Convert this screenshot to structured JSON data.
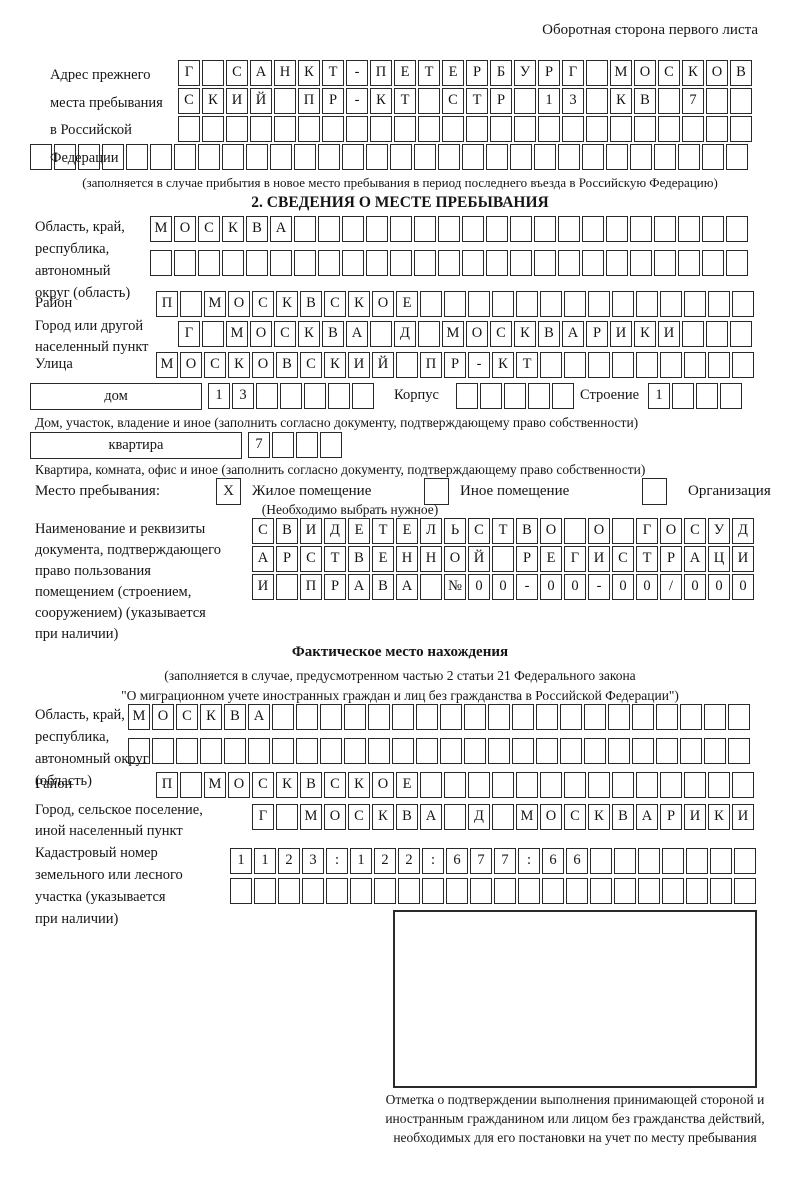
{
  "header": {
    "page_note": "Оборотная сторона первого листа"
  },
  "prev_address": {
    "label_lines": [
      "Адрес прежнего",
      "места пребывания",
      "в Российской",
      "Федерации"
    ],
    "rows": [
      {
        "chars": "Г САНКТ-ПЕТЕРБУРГ МОСКОВ",
        "len": 24
      },
      {
        "chars": "СКИЙ ПР-КТ СТР 13 КВ 7",
        "len": 24
      },
      {
        "chars": "",
        "len": 24
      }
    ],
    "full_row": {
      "chars": "",
      "len": 30
    },
    "caption": "(заполняется в случае прибытия в новое место пребывания в период последнего въезда в Российскую Федерацию)"
  },
  "section2": {
    "title": "2. СВЕДЕНИЯ О МЕСТЕ ПРЕБЫВАНИЯ",
    "region": {
      "label_lines": [
        "Область, край,",
        "республика,",
        "автономный",
        "округ (область)"
      ],
      "rows": [
        {
          "chars": "МОСКВА",
          "len": 25
        },
        {
          "chars": "",
          "len": 25
        }
      ]
    },
    "district": {
      "label": "Район",
      "row": {
        "chars": "П МОСКВСКОЕ",
        "len": 25
      }
    },
    "city": {
      "label_lines": [
        "Город или другой",
        "населенный пункт"
      ],
      "row": {
        "chars": "Г МОСКВА Д МОСКВАРИКИ",
        "len": 24
      }
    },
    "street": {
      "label": "Улица",
      "row": {
        "chars": "МОСКОВСКИЙ ПР-КТ",
        "len": 25
      }
    },
    "house": {
      "box_label": "дом",
      "cells": {
        "chars": "13",
        "len": 7
      },
      "korpus_label": "Корпус",
      "korpus_cells": {
        "chars": "",
        "len": 5
      },
      "stroenie_label": "Строение",
      "stroenie_cells": {
        "chars": "1",
        "len": 4
      },
      "caption": "Дом, участок, владение и иное (заполнить согласно документу, подтверждающему право собственности)"
    },
    "apartment": {
      "box_label": "квартира",
      "cells": {
        "chars": "7",
        "len": 4
      },
      "caption": "Квартира, комната, офис и иное (заполнить согласно документу, подтверждающему право собственности)"
    },
    "stay_type": {
      "label": "Место пребывания:",
      "options": [
        {
          "label": "Жилое помещение",
          "checked": "X"
        },
        {
          "label": "Иное помещение",
          "checked": ""
        },
        {
          "label": "Организация",
          "checked": ""
        }
      ],
      "note": "(Необходимо выбрать нужное)"
    },
    "document": {
      "label_lines": [
        "Наименование и реквизиты",
        "документа, подтверждающего",
        "право пользования",
        "помещением (строением,",
        "сооружением) (указывается",
        "при наличии)"
      ],
      "rows": [
        {
          "chars": "СВИДЕТЕЛЬСТВО О ГОСУД",
          "len": 21
        },
        {
          "chars": "АРСТВЕННОЙ РЕГИСТРАЦИ",
          "len": 21
        },
        {
          "chars": "И ПРАВА №00-00-00/000",
          "len": 21
        }
      ]
    }
  },
  "actual_location": {
    "title": "Фактическое место нахождения",
    "note_lines": [
      "(заполняется в случае, предусмотренном частью 2 статьи 21 Федерального закона",
      "\"О миграционном учете иностранных граждан и лиц без гражданства в Российской Федерации\")"
    ],
    "region": {
      "label_lines": [
        "Область, край,",
        "республика,",
        "автономный округ",
        "(область)"
      ],
      "rows": [
        {
          "chars": "МОСКВА",
          "len": 26
        },
        {
          "chars": "",
          "len": 26
        }
      ]
    },
    "district": {
      "label": "Район",
      "row": {
        "chars": "П МОСКВСКОЕ",
        "len": 25
      }
    },
    "city": {
      "label_lines": [
        "Город, сельское поселение,",
        "иной населенный пункт"
      ],
      "row": {
        "chars": "Г МОСКВА Д МОСКВАРИКИ",
        "len": 21
      }
    },
    "cadastral": {
      "label_lines": [
        "Кадастровый номер",
        "земельного или лесного",
        "участка (указывается",
        "при наличии)"
      ],
      "rows": [
        {
          "chars": "1123:122:677:66",
          "len": 22
        },
        {
          "chars": "",
          "len": 22
        }
      ]
    },
    "stamp_caption": "Отметка о подтверждении выполнения принимающей стороной и иностранным гражданином или лицом без гражданства действий, необходимых для его постановки на учет по месту пребывания"
  }
}
